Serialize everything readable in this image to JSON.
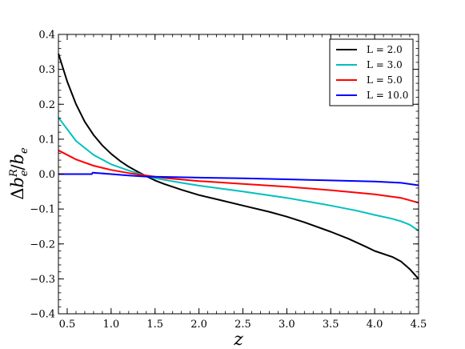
{
  "chart_data": {
    "type": "line",
    "title": "",
    "xlabel": "z",
    "ylabel": "Δb_e^R/b_e",
    "xlim": [
      0.4,
      4.5
    ],
    "ylim": [
      -0.4,
      0.4
    ],
    "grid": false,
    "legend_position": "top-right",
    "x_ticks": [
      0.5,
      1.0,
      1.5,
      2.0,
      2.5,
      3.0,
      3.5,
      4.0,
      4.5
    ],
    "x_tick_labels": [
      "0.5",
      "1.0",
      "1.5",
      "2.0",
      "2.5",
      "3.0",
      "3.5",
      "4.0",
      "4.5"
    ],
    "y_ticks": [
      -0.4,
      -0.3,
      -0.2,
      -0.1,
      0.0,
      0.1,
      0.2,
      0.3,
      0.4
    ],
    "y_tick_labels": [
      "−0.4",
      "−0.3",
      "−0.2",
      "−0.1",
      "0.0",
      "0.1",
      "0.2",
      "0.3",
      "0.4"
    ],
    "series": [
      {
        "name": "L = 2.0",
        "color": "#000000",
        "x": [
          0.4,
          0.5,
          0.6,
          0.7,
          0.8,
          0.9,
          1.0,
          1.1,
          1.2,
          1.3,
          1.4,
          1.5,
          1.6,
          1.8,
          2.0,
          2.2,
          2.5,
          2.8,
          3.0,
          3.2,
          3.5,
          3.7,
          3.9,
          4.0,
          4.2,
          4.3,
          4.4,
          4.5
        ],
        "y": [
          0.345,
          0.265,
          0.2,
          0.15,
          0.112,
          0.082,
          0.058,
          0.038,
          0.021,
          0.007,
          -0.006,
          -0.018,
          -0.028,
          -0.045,
          -0.06,
          -0.072,
          -0.09,
          -0.108,
          -0.122,
          -0.138,
          -0.165,
          -0.185,
          -0.208,
          -0.22,
          -0.237,
          -0.25,
          -0.272,
          -0.3
        ]
      },
      {
        "name": "L = 3.0",
        "color": "#00bfbf",
        "x": [
          0.4,
          0.6,
          0.8,
          1.0,
          1.2,
          1.4,
          1.5,
          1.8,
          2.0,
          2.5,
          3.0,
          3.5,
          3.8,
          4.0,
          4.2,
          4.3,
          4.4,
          4.5
        ],
        "y": [
          0.162,
          0.095,
          0.055,
          0.028,
          0.01,
          -0.005,
          -0.012,
          -0.025,
          -0.033,
          -0.05,
          -0.068,
          -0.09,
          -0.105,
          -0.117,
          -0.128,
          -0.135,
          -0.145,
          -0.162
        ]
      },
      {
        "name": "L = 5.0",
        "color": "#ff0000",
        "x": [
          0.4,
          0.6,
          0.8,
          1.0,
          1.2,
          1.4,
          1.6,
          2.0,
          2.5,
          3.0,
          3.5,
          4.0,
          4.3,
          4.5
        ],
        "y": [
          0.068,
          0.042,
          0.024,
          0.012,
          0.003,
          -0.004,
          -0.011,
          -0.02,
          -0.028,
          -0.036,
          -0.046,
          -0.058,
          -0.068,
          -0.082
        ]
      },
      {
        "name": "L = 10.0",
        "color": "#0000ff",
        "x": [
          0.4,
          0.5,
          0.6,
          0.7,
          0.78,
          0.79,
          0.85,
          1.0,
          1.2,
          1.4,
          1.6,
          2.0,
          2.5,
          3.0,
          3.5,
          4.0,
          4.3,
          4.5
        ],
        "y": [
          0.0,
          0.0,
          0.0,
          0.0,
          0.0,
          0.004,
          0.003,
          0.0,
          -0.004,
          -0.007,
          -0.008,
          -0.01,
          -0.012,
          -0.015,
          -0.018,
          -0.021,
          -0.025,
          -0.032
        ]
      }
    ]
  }
}
